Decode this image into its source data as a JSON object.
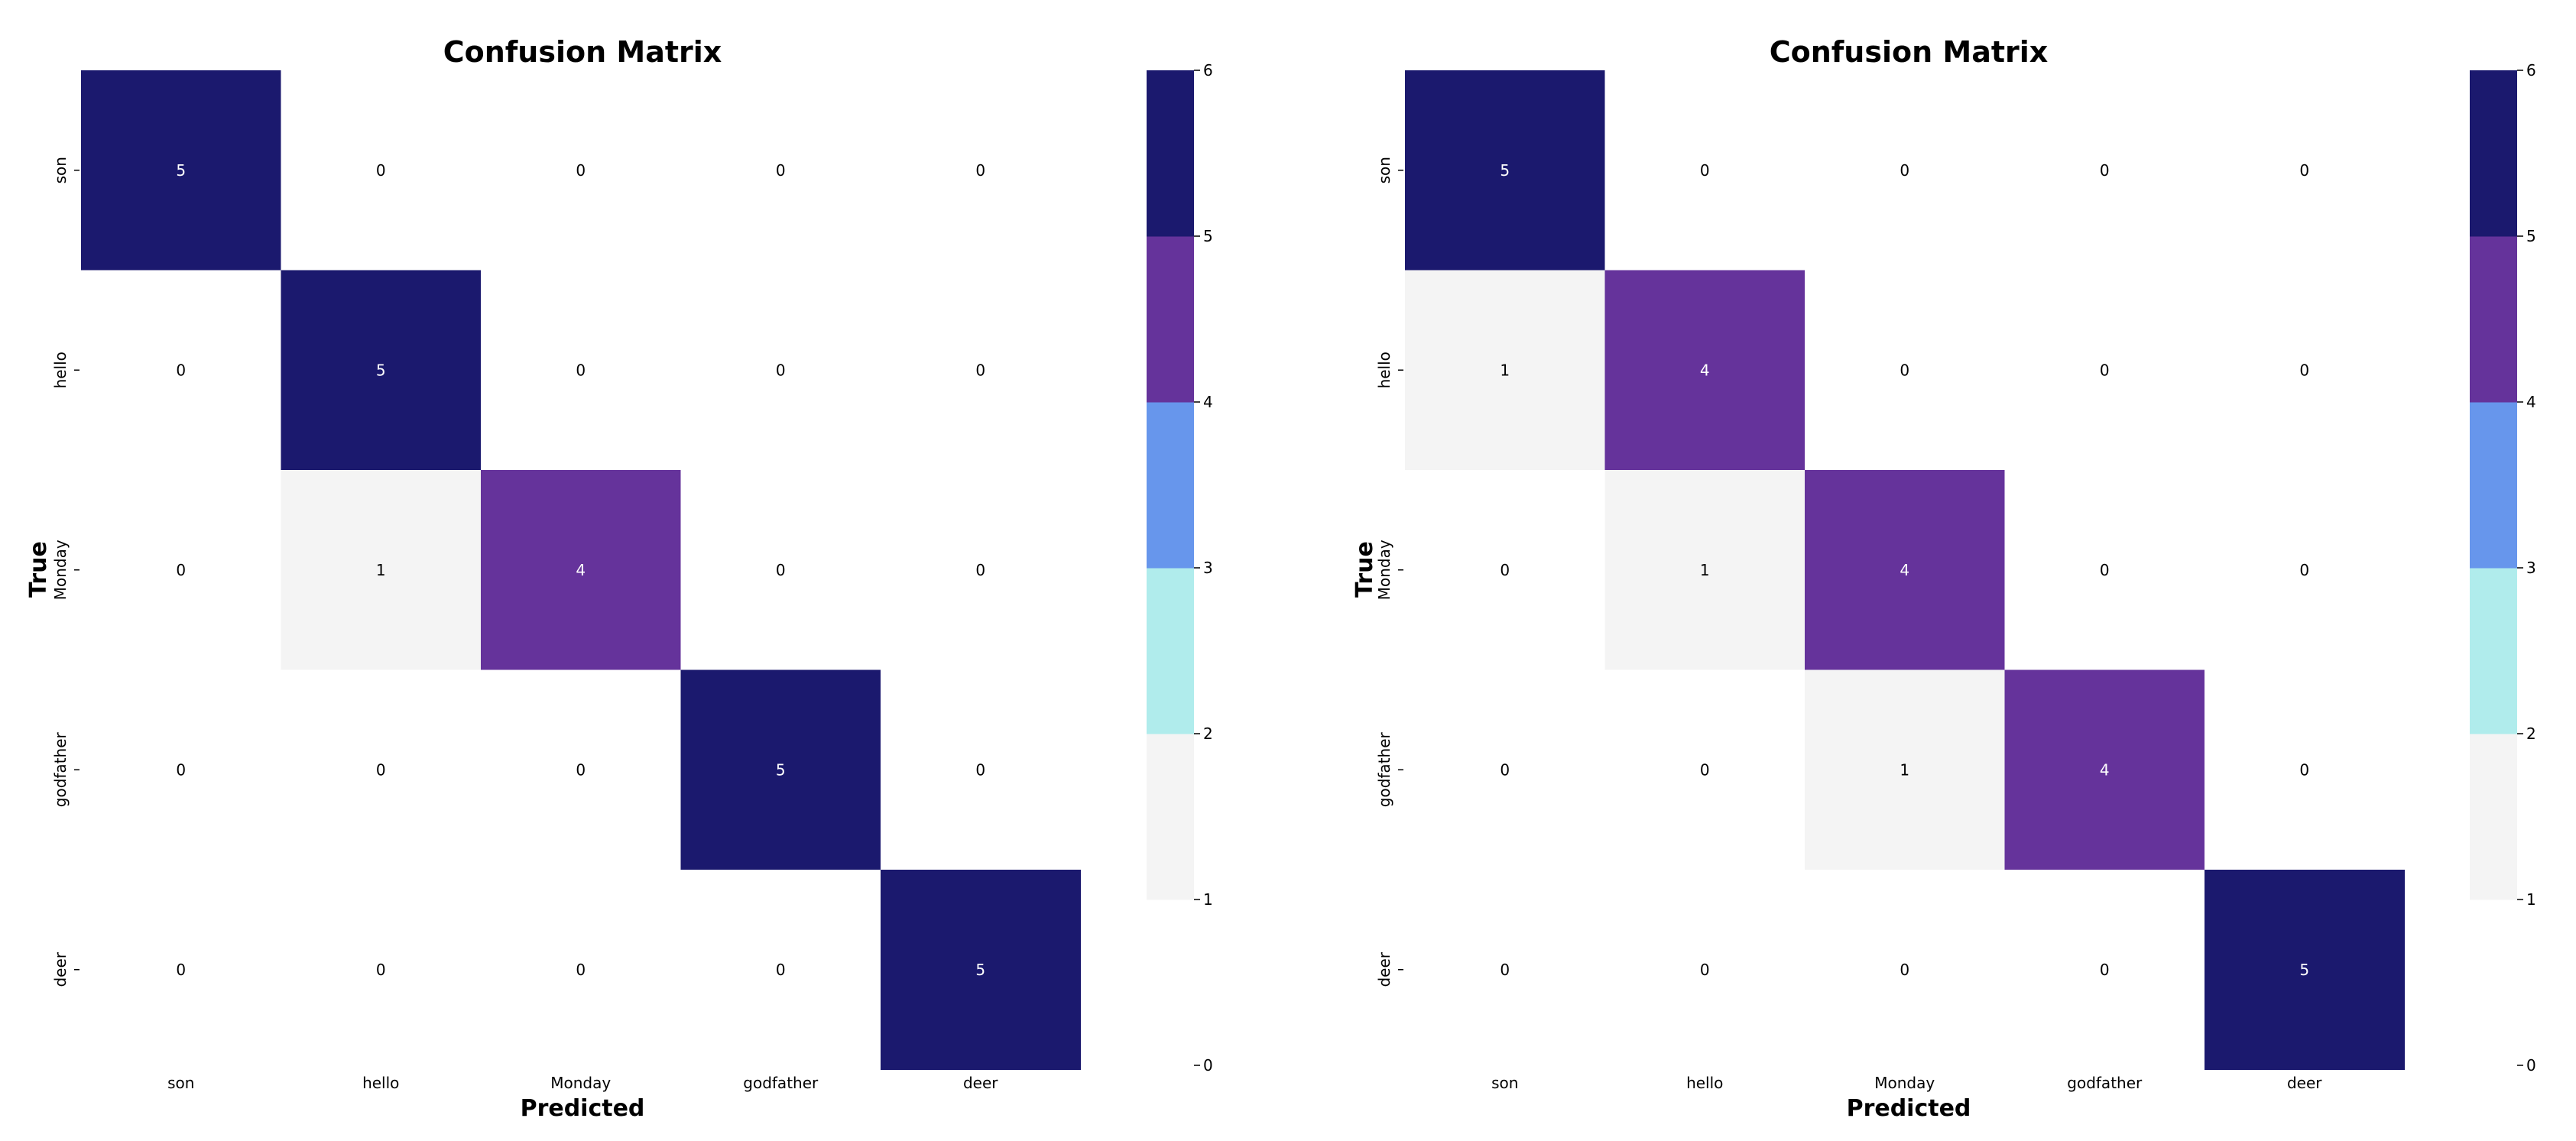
{
  "chart_data": [
    {
      "type": "heatmap",
      "title": "Confusion Matrix",
      "xlabel": "Predicted",
      "ylabel": "True",
      "x_categories": [
        "son",
        "hello",
        "Monday",
        "godfather",
        "deer"
      ],
      "y_categories": [
        "son",
        "hello",
        "Monday",
        "godfather",
        "deer"
      ],
      "matrix": [
        [
          5,
          0,
          0,
          0,
          0
        ],
        [
          0,
          5,
          0,
          0,
          0
        ],
        [
          0,
          1,
          4,
          0,
          0
        ],
        [
          0,
          0,
          0,
          5,
          0
        ],
        [
          0,
          0,
          0,
          0,
          5
        ]
      ],
      "colorbar": {
        "range": [
          0,
          6
        ],
        "ticks": [
          "0",
          "1",
          "2",
          "3",
          "4",
          "5",
          "6"
        ],
        "bands": [
          {
            "from": 0,
            "to": 1,
            "color": "#ffffff"
          },
          {
            "from": 1,
            "to": 2,
            "color": "#f4f4f4"
          },
          {
            "from": 2,
            "to": 3,
            "color": "#b0ecec"
          },
          {
            "from": 3,
            "to": 4,
            "color": "#6796ec"
          },
          {
            "from": 4,
            "to": 5,
            "color": "#65339b"
          },
          {
            "from": 5,
            "to": 6,
            "color": "#1b196e"
          }
        ]
      },
      "grid": false
    },
    {
      "type": "heatmap",
      "title": "Confusion Matrix",
      "xlabel": "Predicted",
      "ylabel": "True",
      "x_categories": [
        "son",
        "hello",
        "Monday",
        "godfather",
        "deer"
      ],
      "y_categories": [
        "son",
        "hello",
        "Monday",
        "godfather",
        "deer"
      ],
      "matrix": [
        [
          5,
          0,
          0,
          0,
          0
        ],
        [
          1,
          4,
          0,
          0,
          0
        ],
        [
          0,
          1,
          4,
          0,
          0
        ],
        [
          0,
          0,
          1,
          4,
          0
        ],
        [
          0,
          0,
          0,
          0,
          5
        ]
      ],
      "colorbar": {
        "range": [
          0,
          6
        ],
        "ticks": [
          "0",
          "1",
          "2",
          "3",
          "4",
          "5",
          "6"
        ],
        "bands": [
          {
            "from": 0,
            "to": 1,
            "color": "#ffffff"
          },
          {
            "from": 1,
            "to": 2,
            "color": "#f4f4f4"
          },
          {
            "from": 2,
            "to": 3,
            "color": "#b0ecec"
          },
          {
            "from": 3,
            "to": 4,
            "color": "#6796ec"
          },
          {
            "from": 4,
            "to": 5,
            "color": "#65339b"
          },
          {
            "from": 5,
            "to": 6,
            "color": "#1b196e"
          }
        ]
      },
      "grid": false
    }
  ]
}
